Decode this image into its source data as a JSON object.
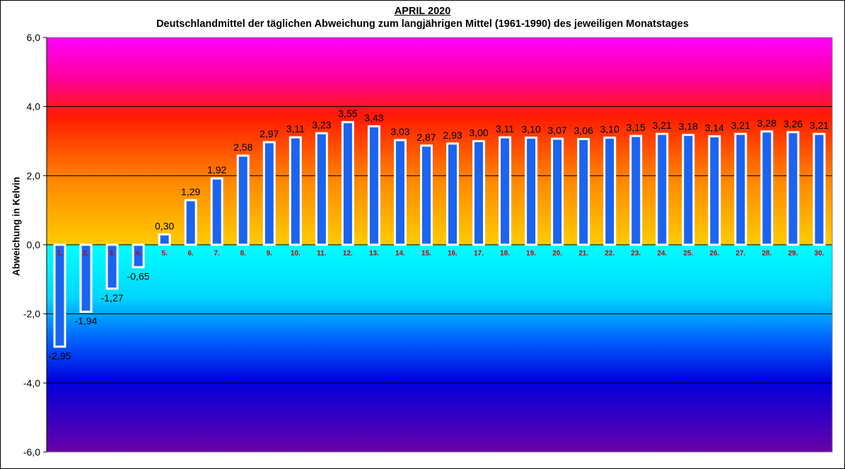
{
  "chart_data": {
    "type": "bar",
    "title": "APRIL 2020",
    "subtitle": "Deutschlandmittel der täglichen Abweichung zum langjährigen Mittel (1961-1990) des jeweiligen Monatstages",
    "xlabel": "",
    "ylabel": "Abweichung in Kelvin",
    "ylim": [
      -6,
      6
    ],
    "yticks": [
      6,
      4,
      2,
      0,
      -2,
      -4,
      -6
    ],
    "ytick_labels": [
      "6,0",
      "4,0",
      "2,0",
      "0,0",
      "-2,0",
      "-4,0",
      "-6,0"
    ],
    "grid": true,
    "categories": [
      "1.",
      "2.",
      "3.",
      "4.",
      "5.",
      "6.",
      "7.",
      "8.",
      "9.",
      "10.",
      "11.",
      "12.",
      "13.",
      "14.",
      "15.",
      "16.",
      "17.",
      "18.",
      "19.",
      "20.",
      "21.",
      "22.",
      "23.",
      "24.",
      "25.",
      "26.",
      "27.",
      "28.",
      "29.",
      "30."
    ],
    "values": [
      -2.95,
      -1.94,
      -1.27,
      -0.65,
      0.3,
      1.29,
      1.92,
      2.58,
      2.97,
      3.11,
      3.23,
      3.55,
      3.43,
      3.03,
      2.87,
      2.93,
      3.0,
      3.11,
      3.1,
      3.07,
      3.06,
      3.1,
      3.15,
      3.21,
      3.18,
      3.14,
      3.21,
      3.28,
      3.26,
      3.21
    ],
    "value_labels": [
      "-2,95",
      "-1,94",
      "-1,27",
      "-0,65",
      "0,30",
      "1,29",
      "1,92",
      "2,58",
      "2,97",
      "3,11",
      "3,23",
      "3,55",
      "3,43",
      "3,03",
      "2,87",
      "2,93",
      "3,00",
      "3,11",
      "3,10",
      "3,07",
      "3,06",
      "3,10",
      "3,15",
      "3,21",
      "3,18",
      "3,14",
      "3,21",
      "3,28",
      "3,26",
      "3,21"
    ],
    "colors": {
      "bar_fill": "#1a64f0",
      "bar_outline": "#ffffff",
      "day_label": "#cc0000",
      "gradient_positive": [
        "#ff00ff",
        "#ff0000",
        "#ff9900",
        "#ffcc00"
      ],
      "gradient_negative": [
        "#00ffff",
        "#0066ff",
        "#0000cc",
        "#660099"
      ]
    }
  }
}
